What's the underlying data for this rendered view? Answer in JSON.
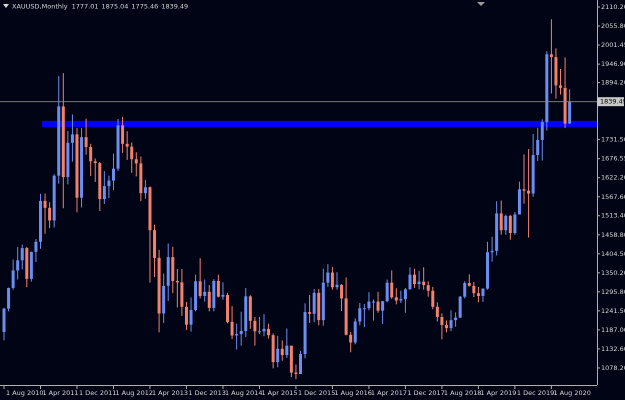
{
  "chart_data": {
    "type": "candlestick",
    "title": "XAUUSD,Monthly",
    "up_color": "#6b8ff0",
    "down_color": "#f2826e",
    "level": {
      "value": 1776,
      "color": "#0000ff"
    },
    "xlim": [
      "2010-08-01",
      "2021-06-01"
    ],
    "ylim": [
      1029.5,
      2130.2
    ],
    "yticks": [
      {
        "value": 2110.2,
        "label": "2110.20"
      },
      {
        "value": 2055.8,
        "label": "2055.80"
      },
      {
        "value": 2001.45,
        "label": "2001.45"
      },
      {
        "value": 1946.9,
        "label": "1946.90"
      },
      {
        "value": 1894.2,
        "label": "1894.20"
      },
      {
        "value": 1731.5,
        "label": "1731.50"
      },
      {
        "value": 1676.55,
        "label": "1676.55"
      },
      {
        "value": 1622.2,
        "label": "1622.20"
      },
      {
        "value": 1567.6,
        "label": "1567.60"
      },
      {
        "value": 1513.4,
        "label": "1513.40"
      },
      {
        "value": 1458.8,
        "label": "1458.80"
      },
      {
        "value": 1404.5,
        "label": "1404.50"
      },
      {
        "value": 1350.2,
        "label": "1350.20"
      },
      {
        "value": 1295.8,
        "label": "1295.80"
      },
      {
        "value": 1241.5,
        "label": "1241.50"
      },
      {
        "value": 1187,
        "label": "1187.00"
      },
      {
        "value": 1132.6,
        "label": "1132.60"
      },
      {
        "value": 1078.2,
        "label": "1078.20"
      }
    ],
    "xticks": [
      {
        "value": "2010-08-01",
        "label": "1 Aug 2010"
      },
      {
        "value": "2011-04-01",
        "label": "1 Apr 2011"
      },
      {
        "value": "2011-12-01",
        "label": "1 Dec 2011"
      },
      {
        "value": "2012-08-01",
        "label": "1 Aug 2012"
      },
      {
        "value": "2013-04-01",
        "label": "1 Apr 2013"
      },
      {
        "value": "2013-12-01",
        "label": "1 Dec 2013"
      },
      {
        "value": "2014-08-01",
        "label": "1 Aug 2014"
      },
      {
        "value": "2015-04-01",
        "label": "1 Apr 2015"
      },
      {
        "value": "2015-12-01",
        "label": "1 Dec 2015"
      },
      {
        "value": "2016-08-01",
        "label": "1 Aug 2016"
      },
      {
        "value": "2017-04-01",
        "label": "1 Apr 2017"
      },
      {
        "value": "2017-12-01",
        "label": "1 Dec 2017"
      },
      {
        "value": "2018-08-01",
        "label": "1 Aug 2018"
      },
      {
        "value": "2019-04-01",
        "label": "1 Apr 2019"
      },
      {
        "value": "2019-12-01",
        "label": "1 Dec 2019"
      },
      {
        "value": "2020-08-01",
        "label": "1 Aug 2020"
      }
    ],
    "x": [
      "2010-08-01",
      "2010-09-01",
      "2010-10-01",
      "2010-11-01",
      "2010-12-01",
      "2011-01-01",
      "2011-02-01",
      "2011-03-01",
      "2011-04-01",
      "2011-05-01",
      "2011-06-01",
      "2011-07-01",
      "2011-08-01",
      "2011-09-01",
      "2011-10-01",
      "2011-11-01",
      "2011-12-01",
      "2012-01-01",
      "2012-02-01",
      "2012-03-01",
      "2012-04-01",
      "2012-05-01",
      "2012-06-01",
      "2012-07-01",
      "2012-08-01",
      "2012-09-01",
      "2012-10-01",
      "2012-11-01",
      "2012-12-01",
      "2013-01-01",
      "2013-02-01",
      "2013-03-01",
      "2013-04-01",
      "2013-05-01",
      "2013-06-01",
      "2013-07-01",
      "2013-08-01",
      "2013-09-01",
      "2013-10-01",
      "2013-11-01",
      "2013-12-01",
      "2014-01-01",
      "2014-02-01",
      "2014-03-01",
      "2014-04-01",
      "2014-05-01",
      "2014-06-01",
      "2014-07-01",
      "2014-08-01",
      "2014-09-01",
      "2014-10-01",
      "2014-11-01",
      "2014-12-01",
      "2015-01-01",
      "2015-02-01",
      "2015-03-01",
      "2015-04-01",
      "2015-05-01",
      "2015-06-01",
      "2015-07-01",
      "2015-08-01",
      "2015-09-01",
      "2015-10-01",
      "2015-11-01",
      "2015-12-01",
      "2016-01-01",
      "2016-02-01",
      "2016-03-01",
      "2016-04-01",
      "2016-05-01",
      "2016-06-01",
      "2016-07-01",
      "2016-08-01",
      "2016-09-01",
      "2016-10-01",
      "2016-11-01",
      "2016-12-01",
      "2017-01-01",
      "2017-02-01",
      "2017-03-01",
      "2017-04-01",
      "2017-05-01",
      "2017-06-01",
      "2017-07-01",
      "2017-08-01",
      "2017-09-01",
      "2017-10-01",
      "2017-11-01",
      "2017-12-01",
      "2018-01-01",
      "2018-02-01",
      "2018-03-01",
      "2018-04-01",
      "2018-05-01",
      "2018-06-01",
      "2018-07-01",
      "2018-08-01",
      "2018-09-01",
      "2018-10-01",
      "2018-11-01",
      "2018-12-01",
      "2019-01-01",
      "2019-02-01",
      "2019-03-01",
      "2019-04-01",
      "2019-05-01",
      "2019-06-01",
      "2019-07-01",
      "2019-08-01",
      "2019-09-01",
      "2019-10-01",
      "2019-11-01",
      "2019-12-01",
      "2020-01-01",
      "2020-02-01",
      "2020-03-01",
      "2020-04-01",
      "2020-05-01",
      "2020-06-01",
      "2020-07-01",
      "2020-08-01",
      "2020-09-01",
      "2020-10-01",
      "2020-11-01",
      "2020-12-01"
    ],
    "open": [
      1181,
      1248,
      1307,
      1357,
      1386,
      1421,
      1333,
      1410,
      1439,
      1556,
      1536,
      1500,
      1628,
      1826,
      1624,
      1722,
      1746,
      1565,
      1738,
      1710,
      1669,
      1664,
      1561,
      1598,
      1614,
      1648,
      1772,
      1719,
      1711,
      1675,
      1663,
      1578,
      1595,
      1472,
      1393,
      1234,
      1313,
      1395,
      1327,
      1323,
      1253,
      1202,
      1244,
      1326,
      1284,
      1296,
      1250,
      1327,
      1282,
      1287,
      1210,
      1171,
      1175,
      1184,
      1283,
      1213,
      1183,
      1183,
      1190,
      1172,
      1095,
      1133,
      1115,
      1142,
      1065,
      1061,
      1118,
      1238,
      1233,
      1293,
      1215,
      1322,
      1351,
      1309,
      1316,
      1277,
      1173,
      1151,
      1211,
      1249,
      1249,
      1268,
      1268,
      1242,
      1269,
      1322,
      1280,
      1271,
      1275,
      1303,
      1345,
      1318,
      1325,
      1315,
      1299,
      1253,
      1224,
      1201,
      1192,
      1215,
      1222,
      1282,
      1321,
      1313,
      1292,
      1284,
      1305,
      1409,
      1413,
      1520,
      1472,
      1513,
      1464,
      1517,
      1589,
      1585,
      1577,
      1687,
      1730,
      1781,
      1975,
      1967,
      1886,
      1879,
      1777.01
    ],
    "high": [
      1250,
      1308,
      1388,
      1424,
      1431,
      1424,
      1411,
      1447,
      1576,
      1577,
      1552,
      1632,
      1913,
      1921,
      1756,
      1803,
      1764,
      1764,
      1791,
      1719,
      1677,
      1667,
      1641,
      1628,
      1691,
      1790,
      1796,
      1755,
      1723,
      1695,
      1683,
      1616,
      1597,
      1488,
      1416,
      1348,
      1434,
      1425,
      1361,
      1361,
      1267,
      1280,
      1345,
      1392,
      1331,
      1315,
      1332,
      1345,
      1323,
      1293,
      1255,
      1205,
      1239,
      1307,
      1286,
      1224,
      1224,
      1232,
      1205,
      1177,
      1170,
      1157,
      1191,
      1142,
      1088,
      1127,
      1263,
      1287,
      1304,
      1304,
      1362,
      1375,
      1367,
      1352,
      1318,
      1337,
      1181,
      1220,
      1264,
      1261,
      1295,
      1274,
      1296,
      1270,
      1331,
      1357,
      1306,
      1299,
      1307,
      1366,
      1362,
      1356,
      1366,
      1326,
      1310,
      1266,
      1234,
      1214,
      1243,
      1237,
      1284,
      1326,
      1346,
      1324,
      1310,
      1306,
      1439,
      1453,
      1555,
      1557,
      1517,
      1516,
      1524,
      1611,
      1689,
      1704,
      1747,
      1765,
      1789,
      1984,
      2075,
      1992,
      1933,
      1966,
      1875.04
    ],
    "low": [
      1157,
      1240,
      1302,
      1331,
      1360,
      1309,
      1325,
      1381,
      1419,
      1462,
      1478,
      1480,
      1605,
      1535,
      1603,
      1668,
      1523,
      1537,
      1688,
      1627,
      1610,
      1527,
      1547,
      1564,
      1587,
      1642,
      1693,
      1673,
      1636,
      1626,
      1555,
      1562,
      1322,
      1338,
      1180,
      1207,
      1270,
      1292,
      1251,
      1227,
      1187,
      1182,
      1240,
      1277,
      1268,
      1240,
      1240,
      1280,
      1273,
      1206,
      1161,
      1131,
      1142,
      1167,
      1190,
      1142,
      1175,
      1169,
      1162,
      1077,
      1080,
      1099,
      1107,
      1052,
      1046,
      1061,
      1106,
      1207,
      1209,
      1200,
      1199,
      1310,
      1302,
      1302,
      1241,
      1171,
      1123,
      1146,
      1200,
      1195,
      1243,
      1214,
      1236,
      1204,
      1266,
      1276,
      1260,
      1264,
      1236,
      1302,
      1307,
      1303,
      1302,
      1282,
      1246,
      1211,
      1160,
      1180,
      1183,
      1196,
      1221,
      1277,
      1311,
      1281,
      1266,
      1267,
      1302,
      1382,
      1400,
      1459,
      1459,
      1445,
      1459,
      1517,
      1548,
      1451,
      1567,
      1670,
      1671,
      1757,
      1863,
      1848,
      1860,
      1764,
      1775.46
    ],
    "close": [
      1248,
      1307,
      1357,
      1386,
      1421,
      1333,
      1410,
      1439,
      1556,
      1536,
      1500,
      1628,
      1826,
      1624,
      1722,
      1746,
      1565,
      1738,
      1710,
      1669,
      1664,
      1561,
      1598,
      1614,
      1648,
      1772,
      1719,
      1711,
      1675,
      1663,
      1578,
      1595,
      1472,
      1393,
      1234,
      1313,
      1395,
      1327,
      1323,
      1253,
      1202,
      1244,
      1326,
      1284,
      1296,
      1250,
      1327,
      1282,
      1287,
      1210,
      1171,
      1175,
      1184,
      1283,
      1213,
      1183,
      1183,
      1190,
      1172,
      1095,
      1133,
      1115,
      1142,
      1065,
      1061,
      1118,
      1238,
      1233,
      1293,
      1215,
      1322,
      1351,
      1309,
      1316,
      1277,
      1173,
      1151,
      1211,
      1249,
      1249,
      1268,
      1268,
      1242,
      1269,
      1322,
      1280,
      1271,
      1275,
      1303,
      1345,
      1318,
      1325,
      1315,
      1299,
      1253,
      1224,
      1201,
      1192,
      1215,
      1222,
      1282,
      1321,
      1313,
      1292,
      1284,
      1305,
      1409,
      1413,
      1520,
      1472,
      1513,
      1464,
      1517,
      1589,
      1585,
      1577,
      1687,
      1730,
      1781,
      1975,
      1967,
      1886,
      1879,
      1777,
      1839.49
    ]
  }
}
